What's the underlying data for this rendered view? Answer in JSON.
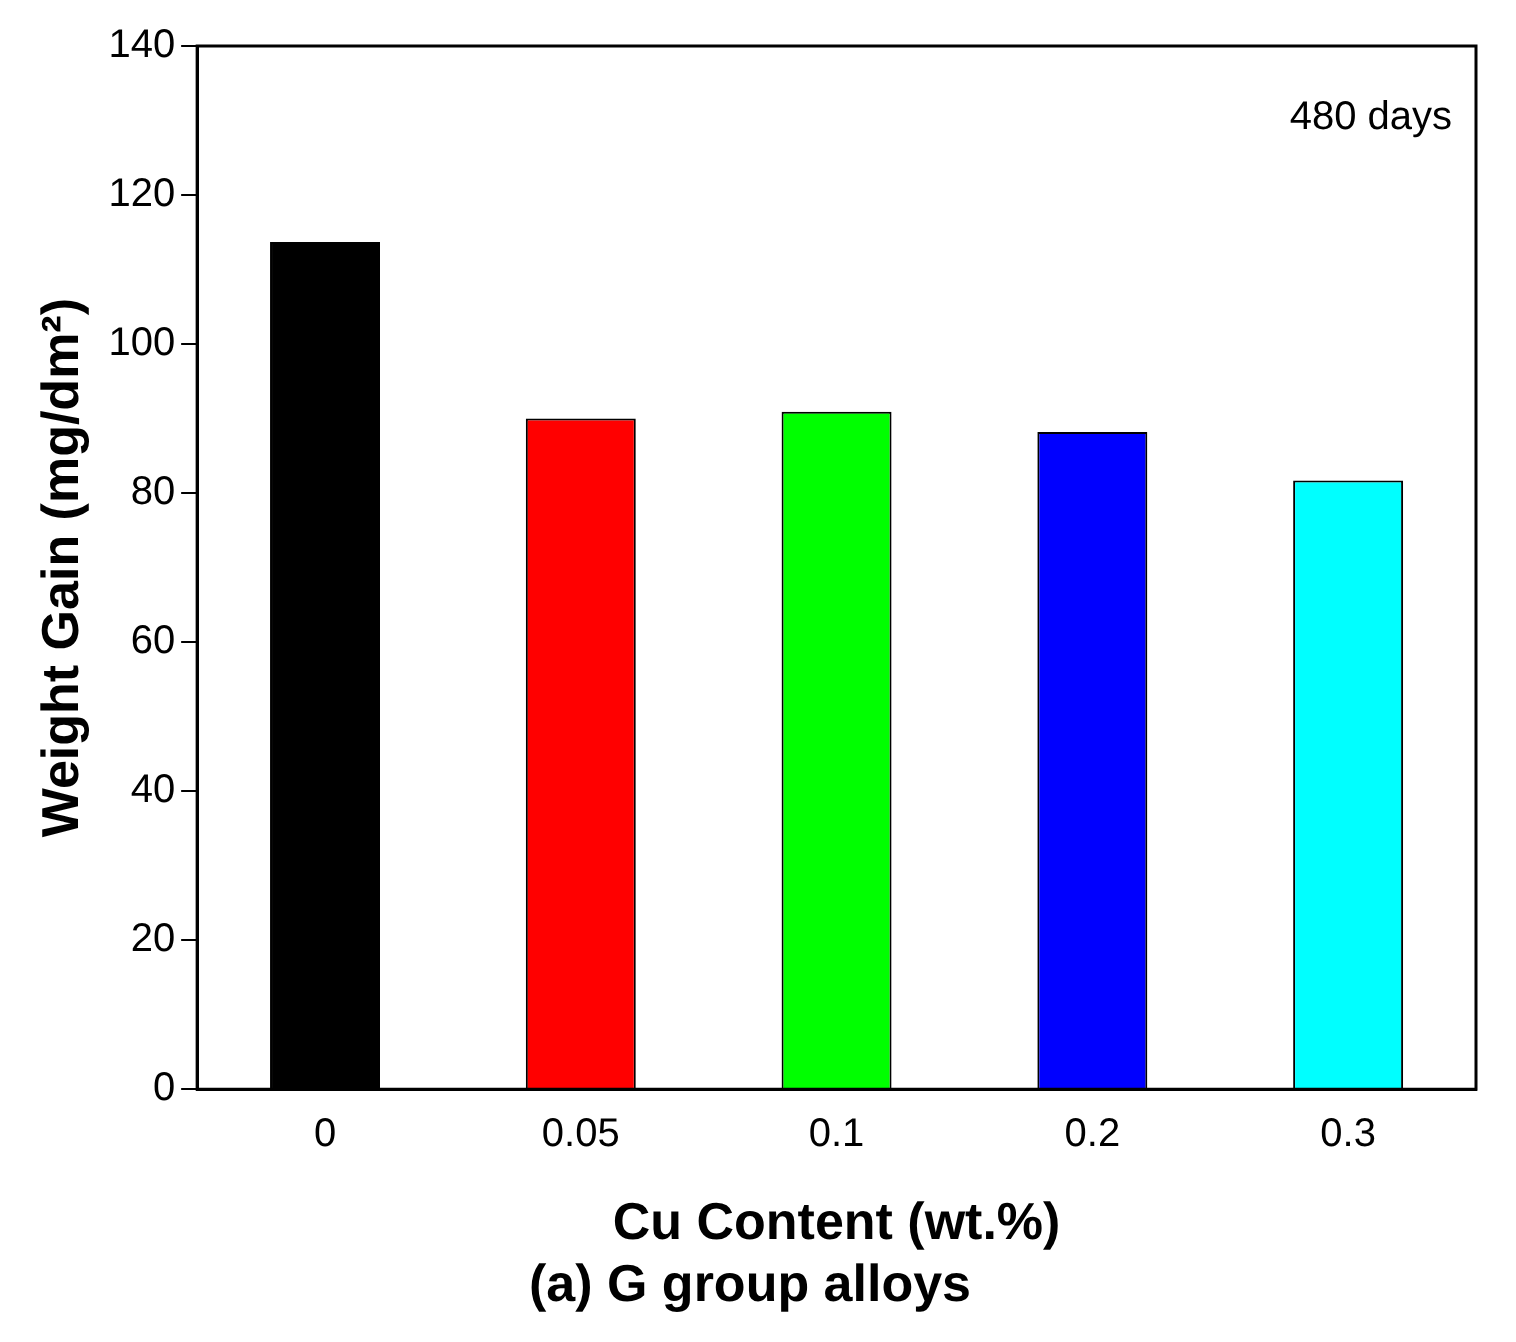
{
  "chart_data": {
    "type": "bar",
    "title": "(a) G group alloys",
    "xlabel": "Cu Content (wt.%)",
    "ylabel": "Weight Gain (mg/dm²)",
    "annotations": [
      "480 days"
    ],
    "categories": [
      "0",
      "0.05",
      "0.1",
      "0.2",
      "0.3"
    ],
    "values": [
      113.7,
      90,
      90.9,
      88.2,
      81.7
    ],
    "colors": [
      "#000000",
      "#ff0000",
      "#00ff00",
      "#0000ff",
      "#00ffff"
    ],
    "ylim": [
      0,
      140
    ],
    "yticks": [
      0,
      20,
      40,
      60,
      80,
      100,
      120,
      140
    ],
    "grid": false,
    "legend": false
  }
}
